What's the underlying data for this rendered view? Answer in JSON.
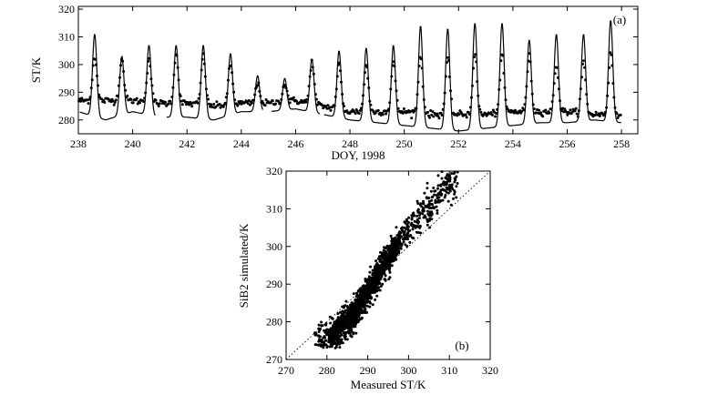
{
  "chart_data": [
    {
      "id": "a",
      "type": "line",
      "panel_label": "(a)",
      "xlabel": "DOY, 1998",
      "ylabel": "ST/K",
      "xlim": [
        238,
        258.6
      ],
      "ylim": [
        275,
        321
      ],
      "xticks": [
        238,
        240,
        242,
        244,
        246,
        248,
        250,
        252,
        254,
        256,
        258
      ],
      "yticks": [
        280,
        290,
        300,
        310,
        320
      ],
      "grid": false,
      "legend": "none",
      "series": [
        {
          "style": "solid line",
          "description_of_values": "daily maxima (peak K) and minima (trough K) of the simulated diurnal curve",
          "day_peaks": [
            {
              "x": 238.6,
              "y": 311
            },
            {
              "x": 239.6,
              "y": 303
            },
            {
              "x": 240.6,
              "y": 307
            },
            {
              "x": 241.6,
              "y": 307
            },
            {
              "x": 242.6,
              "y": 307
            },
            {
              "x": 243.6,
              "y": 304
            },
            {
              "x": 244.6,
              "y": 296
            },
            {
              "x": 245.6,
              "y": 295
            },
            {
              "x": 246.6,
              "y": 302
            },
            {
              "x": 247.6,
              "y": 305
            },
            {
              "x": 248.6,
              "y": 306
            },
            {
              "x": 249.6,
              "y": 307
            },
            {
              "x": 250.6,
              "y": 314
            },
            {
              "x": 251.6,
              "y": 313
            },
            {
              "x": 252.6,
              "y": 315
            },
            {
              "x": 253.6,
              "y": 315
            },
            {
              "x": 254.6,
              "y": 309
            },
            {
              "x": 255.6,
              "y": 311
            },
            {
              "x": 256.6,
              "y": 311
            },
            {
              "x": 257.6,
              "y": 316
            }
          ],
          "day_troughs": [
            {
              "x": 238.2,
              "y": 283
            },
            {
              "x": 239.2,
              "y": 280
            },
            {
              "x": 240.2,
              "y": 283
            },
            {
              "x": 241.2,
              "y": 281
            },
            {
              "x": 242.2,
              "y": 281
            },
            {
              "x": 243.2,
              "y": 280
            },
            {
              "x": 244.2,
              "y": 283
            },
            {
              "x": 245.2,
              "y": 283
            },
            {
              "x": 246.2,
              "y": 284
            },
            {
              "x": 247.2,
              "y": 282
            },
            {
              "x": 248.2,
              "y": 280
            },
            {
              "x": 249.2,
              "y": 279
            },
            {
              "x": 250.2,
              "y": 278
            },
            {
              "x": 251.2,
              "y": 277
            },
            {
              "x": 252.2,
              "y": 276
            },
            {
              "x": 253.2,
              "y": 277
            },
            {
              "x": 254.2,
              "y": 278
            },
            {
              "x": 255.2,
              "y": 279
            },
            {
              "x": 256.2,
              "y": 279
            },
            {
              "x": 257.2,
              "y": 280
            },
            {
              "x": 258.2,
              "y": 279
            }
          ]
        },
        {
          "style": "filled dots",
          "description_of_values": "daily maxima (peak K) and minima (trough K) of the measured diurnal curve",
          "day_peaks": [
            {
              "x": 238.6,
              "y": 303
            },
            {
              "x": 239.6,
              "y": 302
            },
            {
              "x": 240.6,
              "y": 302
            },
            {
              "x": 241.6,
              "y": 304
            },
            {
              "x": 242.6,
              "y": 303
            },
            {
              "x": 243.6,
              "y": 300
            },
            {
              "x": 244.6,
              "y": 293
            },
            {
              "x": 245.6,
              "y": 293
            },
            {
              "x": 246.6,
              "y": 301
            },
            {
              "x": 247.6,
              "y": 300
            },
            {
              "x": 248.6,
              "y": 300
            },
            {
              "x": 249.6,
              "y": 301
            },
            {
              "x": 250.6,
              "y": 303
            },
            {
              "x": 251.6,
              "y": 302
            },
            {
              "x": 252.6,
              "y": 304
            },
            {
              "x": 253.6,
              "y": 303
            },
            {
              "x": 254.6,
              "y": 303
            },
            {
              "x": 255.6,
              "y": 300
            },
            {
              "x": 256.6,
              "y": 301
            },
            {
              "x": 257.6,
              "y": 304
            }
          ],
          "day_troughs": [
            {
              "x": 238.2,
              "y": 287
            },
            {
              "x": 239.2,
              "y": 287
            },
            {
              "x": 240.2,
              "y": 287
            },
            {
              "x": 241.2,
              "y": 286
            },
            {
              "x": 242.2,
              "y": 286
            },
            {
              "x": 243.2,
              "y": 285
            },
            {
              "x": 244.2,
              "y": 286
            },
            {
              "x": 245.2,
              "y": 286
            },
            {
              "x": 246.2,
              "y": 287
            },
            {
              "x": 247.2,
              "y": 285
            },
            {
              "x": 248.2,
              "y": 283
            },
            {
              "x": 249.2,
              "y": 283
            },
            {
              "x": 250.2,
              "y": 283
            },
            {
              "x": 251.2,
              "y": 282
            },
            {
              "x": 252.2,
              "y": 282
            },
            {
              "x": 253.2,
              "y": 282
            },
            {
              "x": 254.2,
              "y": 283
            },
            {
              "x": 255.2,
              "y": 283
            },
            {
              "x": 256.2,
              "y": 283
            },
            {
              "x": 257.2,
              "y": 282
            },
            {
              "x": 258.2,
              "y": 282
            }
          ]
        }
      ]
    },
    {
      "id": "b",
      "type": "scatter",
      "panel_label": "(b)",
      "xlabel": "Measured ST/K",
      "ylabel": "SiB2 simulated/K",
      "xlim": [
        270,
        320
      ],
      "ylim": [
        270,
        320
      ],
      "xticks": [
        270,
        280,
        290,
        300,
        310,
        320
      ],
      "yticks": [
        270,
        280,
        290,
        300,
        310,
        320
      ],
      "grid": false,
      "legend": "none",
      "reference_line": {
        "style": "dotted",
        "x": [
          270,
          320
        ],
        "y": [
          270,
          320
        ]
      },
      "point_cloud": {
        "style": "filled dots",
        "shape": "elongated band lying steeper than the 1:1 line",
        "x_range": [
          277,
          312
        ],
        "y_range": [
          273,
          320
        ],
        "band_centerline": [
          {
            "x": 278,
            "y": 275.5
          },
          {
            "x": 282,
            "y": 277
          },
          {
            "x": 286,
            "y": 281
          },
          {
            "x": 290,
            "y": 288
          },
          {
            "x": 294,
            "y": 295
          },
          {
            "x": 298,
            "y": 302
          },
          {
            "x": 302,
            "y": 307
          },
          {
            "x": 306,
            "y": 312
          },
          {
            "x": 310,
            "y": 317
          }
        ]
      }
    }
  ]
}
